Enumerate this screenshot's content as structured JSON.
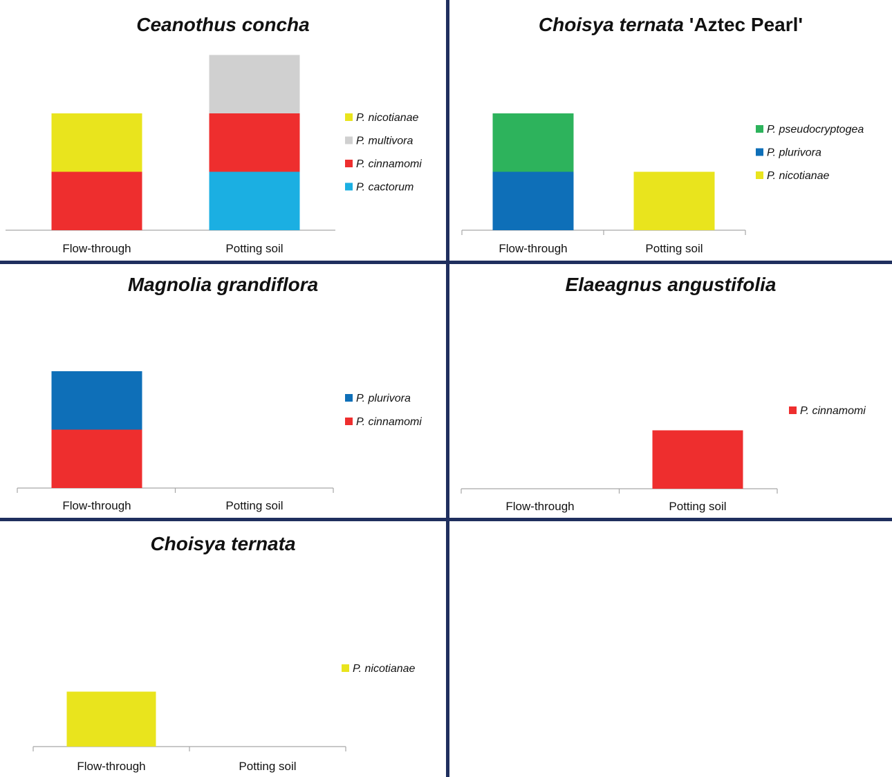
{
  "chart_data": [
    {
      "type": "bar",
      "stacked": true,
      "title": "Ceanothus concha",
      "title_suffix": "",
      "categories": [
        "Flow-through",
        "Potting soil"
      ],
      "series": [
        {
          "name": "P. cactorum",
          "color": "#1bafe2",
          "values": [
            0,
            1
          ]
        },
        {
          "name": "P. cinnamomi",
          "color": "#ee2e2e",
          "values": [
            1,
            1
          ]
        },
        {
          "name": "P. multivora",
          "color": "#d0d0d0",
          "values": [
            0,
            1
          ]
        },
        {
          "name": "P. nicotianae",
          "color": "#e9e41d",
          "values": [
            1,
            0
          ]
        }
      ],
      "legend_order": [
        "P. nicotianae",
        "P. multivora",
        "P. cinnamomi",
        "P. cactorum"
      ],
      "ylim": [
        0,
        3
      ],
      "legend_position": "right",
      "grid": false
    },
    {
      "type": "bar",
      "stacked": true,
      "title": "Choisya ternata",
      "title_suffix": "'Aztec Pearl'",
      "categories": [
        "Flow-through",
        "Potting soil"
      ],
      "series": [
        {
          "name": "P. nicotianae",
          "color": "#e9e41d",
          "values": [
            0,
            1
          ]
        },
        {
          "name": "P. plurivora",
          "color": "#0e6fb8",
          "values": [
            1,
            0
          ]
        },
        {
          "name": "P. pseudocryptogea",
          "color": "#2db35c",
          "values": [
            1,
            0
          ]
        }
      ],
      "legend_order": [
        "P. pseudocryptogea",
        "P. plurivora",
        "P. nicotianae"
      ],
      "ylim": [
        0,
        3
      ],
      "legend_position": "right",
      "grid": false
    },
    {
      "type": "bar",
      "stacked": true,
      "title": "Magnolia grandiflora",
      "title_suffix": "",
      "categories": [
        "Flow-through",
        "Potting soil"
      ],
      "series": [
        {
          "name": "P. cinnamomi",
          "color": "#ee2e2e",
          "values": [
            1,
            0
          ]
        },
        {
          "name": "P. plurivora",
          "color": "#0e6fb8",
          "values": [
            1,
            0
          ]
        }
      ],
      "legend_order": [
        "P. plurivora",
        "P. cinnamomi"
      ],
      "ylim": [
        0,
        3
      ],
      "legend_position": "right",
      "grid": false
    },
    {
      "type": "bar",
      "stacked": true,
      "title": "Elaeagnus angustifolia",
      "title_suffix": "",
      "categories": [
        "Flow-through",
        "Potting soil"
      ],
      "series": [
        {
          "name": "P. cinnamomi",
          "color": "#ee2e2e",
          "values": [
            0,
            1
          ]
        }
      ],
      "legend_order": [
        "P. cinnamomi"
      ],
      "ylim": [
        0,
        3
      ],
      "legend_position": "right",
      "grid": false
    },
    {
      "type": "bar",
      "stacked": true,
      "title": "Choisya ternata",
      "title_suffix": "",
      "categories": [
        "Flow-through",
        "Potting soil"
      ],
      "series": [
        {
          "name": "P. nicotianae",
          "color": "#e9e41d",
          "values": [
            1,
            0
          ]
        }
      ],
      "legend_order": [
        "P. nicotianae"
      ],
      "ylim": [
        0,
        3
      ],
      "legend_position": "right",
      "grid": false
    }
  ],
  "divider_color": "#1f2f5e",
  "axis_color": "#a6a6a6"
}
